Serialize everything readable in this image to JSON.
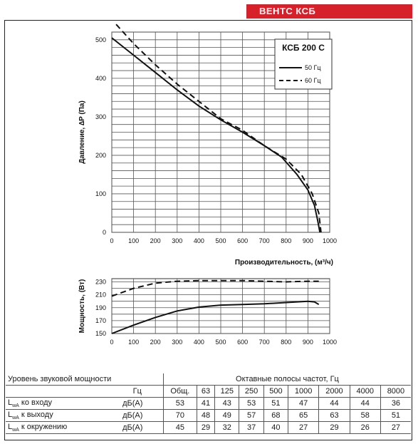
{
  "header": {
    "brand": "ВЕНТС КСБ"
  },
  "chart_data": [
    {
      "type": "line",
      "title": "КСБ 200 С",
      "xlabel": "Производительность, (м³/ч)",
      "ylabel": "Давление, ∆P (Па)",
      "xlim": [
        0,
        1000
      ],
      "ylim": [
        0,
        520
      ],
      "xticks": [
        "0",
        "100",
        "200",
        "300",
        "400",
        "500",
        "600",
        "700",
        "800",
        "900",
        "1000"
      ],
      "yticks": [
        "0",
        "100",
        "200",
        "300",
        "400",
        "500"
      ],
      "grid": true,
      "legend_position": "top-right",
      "series": [
        {
          "name": "50 Гц",
          "style": "solid",
          "x": [
            0,
            100,
            200,
            300,
            400,
            500,
            600,
            700,
            780,
            850,
            900,
            930,
            945,
            955
          ],
          "y": [
            505,
            460,
            415,
            370,
            328,
            292,
            260,
            225,
            195,
            150,
            110,
            70,
            30,
            0
          ]
        },
        {
          "name": "60 Гц",
          "style": "dashed",
          "x": [
            20,
            100,
            200,
            300,
            400,
            500,
            600,
            700,
            800,
            870,
            920,
            950,
            960
          ],
          "y": [
            540,
            490,
            435,
            385,
            340,
            295,
            265,
            225,
            190,
            150,
            100,
            50,
            0
          ]
        }
      ]
    },
    {
      "type": "line",
      "ylabel": "Мощность, (Вт)",
      "xlim": [
        0,
        1000
      ],
      "ylim": [
        150,
        235
      ],
      "xticks": [
        "0",
        "100",
        "200",
        "300",
        "400",
        "500",
        "600",
        "700",
        "800",
        "900",
        "1000"
      ],
      "yticks": [
        "150",
        "170",
        "190",
        "210",
        "230"
      ],
      "grid": true,
      "series": [
        {
          "style": "solid",
          "x": [
            0,
            100,
            200,
            300,
            400,
            500,
            600,
            700,
            800,
            900,
            930,
            950
          ],
          "y": [
            150,
            163,
            175,
            185,
            191,
            194,
            195,
            196,
            198,
            200,
            199,
            195
          ]
        },
        {
          "style": "dashed",
          "x": [
            0,
            100,
            200,
            300,
            400,
            500,
            600,
            700,
            800,
            900,
            950
          ],
          "y": [
            208,
            220,
            228,
            231,
            232,
            232,
            232,
            231,
            230,
            231,
            231
          ]
        }
      ]
    }
  ],
  "sound_table": {
    "title": "Уровень звуковой мощности",
    "bands_title": "Октавные полосы частот, Гц",
    "hz": "Гц",
    "headers": [
      "Общ.",
      "63",
      "125",
      "250",
      "500",
      "1000",
      "2000",
      "4000",
      "8000"
    ],
    "rows": [
      {
        "label": "ко входу",
        "unit": "дБ(А)",
        "values": [
          "53",
          "41",
          "43",
          "53",
          "51",
          "47",
          "44",
          "44",
          "36"
        ]
      },
      {
        "label": "к выходу",
        "unit": "дБ(А)",
        "values": [
          "70",
          "48",
          "49",
          "57",
          "68",
          "65",
          "63",
          "58",
          "51"
        ]
      },
      {
        "label": "к окружению",
        "unit": "дБ(А)",
        "values": [
          "45",
          "29",
          "32",
          "37",
          "40",
          "27",
          "29",
          "26",
          "27"
        ]
      }
    ]
  }
}
